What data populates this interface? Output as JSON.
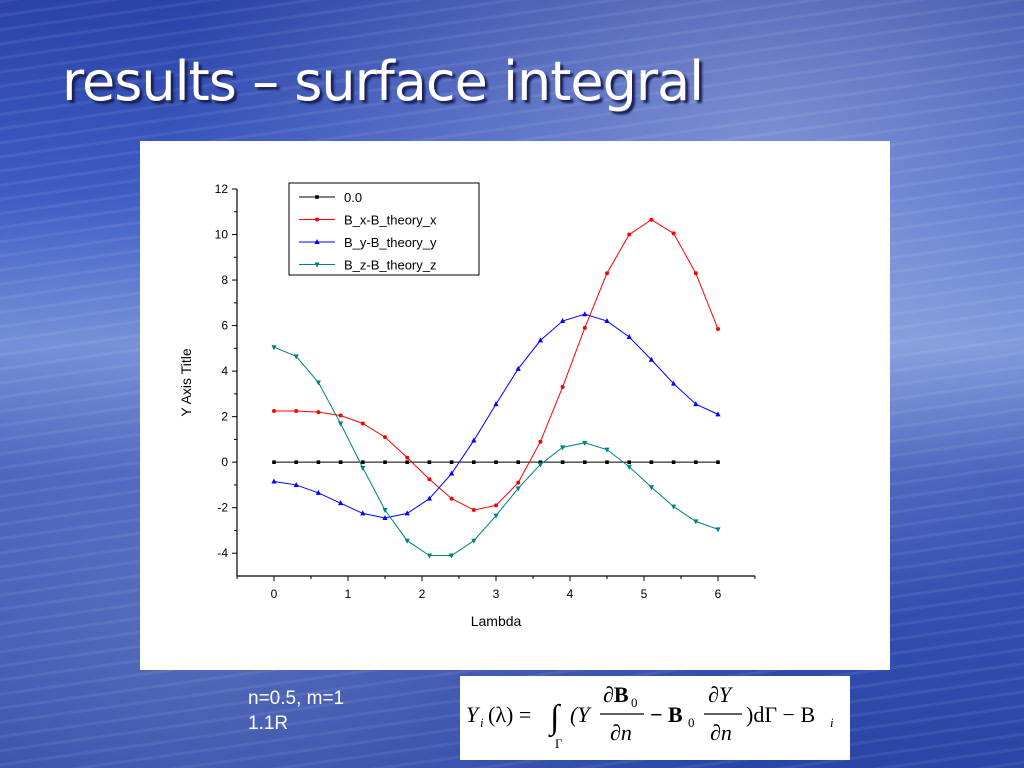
{
  "slide": {
    "title": "results – surface integral",
    "caption_line1": "n=0.5, m=1",
    "caption_line2": "1.1R"
  },
  "formula": {
    "lhs": "Y",
    "lhs_sub": "i",
    "lhs_arg": "(λ) =",
    "integral": "∫",
    "integral_sub": "Γ",
    "open": "(Y",
    "frac1_num": "∂B",
    "frac1_num_sub": "0",
    "frac1_den": "∂n",
    "mid": "− B",
    "mid_sub": "0",
    "frac2_num": "∂Y",
    "frac2_den": "∂n",
    "close": ")dΓ − B",
    "close_sub": "i"
  },
  "chart_data": {
    "type": "line",
    "xlabel": "Lambda",
    "ylabel": "Y Axis Title",
    "xlim": [
      -0.5,
      6.5
    ],
    "ylim": [
      -5,
      12
    ],
    "xticks": [
      0,
      1,
      2,
      3,
      4,
      5,
      6
    ],
    "yticks": [
      -4,
      -2,
      0,
      2,
      4,
      6,
      8,
      10,
      12
    ],
    "grid": false,
    "legend_position": "top-left",
    "x": [
      0,
      0.3,
      0.6,
      0.9,
      1.2,
      1.5,
      1.8,
      2.1,
      2.4,
      2.7,
      3.0,
      3.3,
      3.6,
      3.9,
      4.2,
      4.5,
      4.8,
      5.1,
      5.4,
      5.7,
      6.0
    ],
    "series": [
      {
        "name": "0.0",
        "color": "#000000",
        "marker": "square",
        "values": [
          0,
          0,
          0,
          0,
          0,
          0,
          0,
          0,
          0,
          0,
          0,
          0,
          0,
          0,
          0,
          0,
          0,
          0,
          0,
          0,
          0
        ]
      },
      {
        "name": "B_x-B_theory_x",
        "color": "#ff0000",
        "marker": "circle",
        "values": [
          2.25,
          2.25,
          2.2,
          2.05,
          1.7,
          1.1,
          0.2,
          -0.75,
          -1.6,
          -2.1,
          -1.9,
          -0.9,
          0.9,
          3.3,
          5.9,
          8.3,
          10.0,
          10.65,
          10.05,
          8.3,
          5.85
        ]
      },
      {
        "name": "B_y-B_theory_y",
        "color": "#0000ff",
        "marker": "triangle-up",
        "values": [
          -0.85,
          -1.0,
          -1.35,
          -1.8,
          -2.25,
          -2.45,
          -2.25,
          -1.6,
          -0.5,
          0.95,
          2.55,
          4.1,
          5.35,
          6.2,
          6.5,
          6.2,
          5.5,
          4.5,
          3.45,
          2.55,
          2.1
        ]
      },
      {
        "name": "B_z-B_theory_z",
        "color": "#008080",
        "marker": "triangle-down",
        "values": [
          5.05,
          4.65,
          3.5,
          1.7,
          -0.25,
          -2.1,
          -3.45,
          -4.1,
          -4.1,
          -3.45,
          -2.35,
          -1.15,
          -0.1,
          0.65,
          0.85,
          0.55,
          -0.2,
          -1.1,
          -1.95,
          -2.6,
          -2.95
        ]
      }
    ]
  }
}
